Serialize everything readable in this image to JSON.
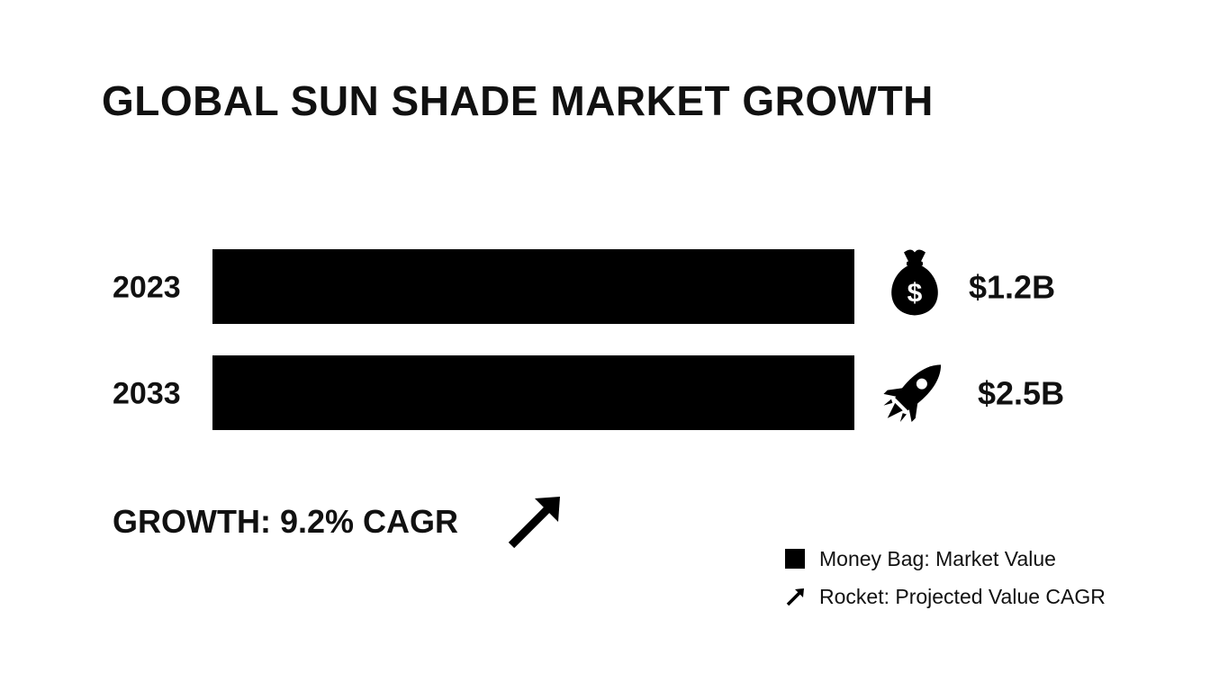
{
  "title": "GLOBAL SUN SHADE MARKET GROWTH",
  "chart_data": {
    "type": "bar",
    "orientation": "horizontal",
    "title": "GLOBAL SUN SHADE MARKET GROWTH",
    "categories": [
      "2023",
      "2033"
    ],
    "values": [
      1.2,
      2.5
    ],
    "value_labels": [
      "$1.2B",
      "$2.5B"
    ],
    "value_icons": [
      "money-bag-icon",
      "rocket-icon"
    ],
    "bar_color": "#000000",
    "legend_position": "bottom-right"
  },
  "growth_label": "GROWTH: 9.2% CAGR",
  "legend": {
    "items": [
      {
        "label": "Money Bag: Market Value",
        "icon": "square-swatch"
      },
      {
        "label": "Rocket: Projected Value CAGR",
        "icon": "arrow-up-right-icon"
      }
    ]
  }
}
